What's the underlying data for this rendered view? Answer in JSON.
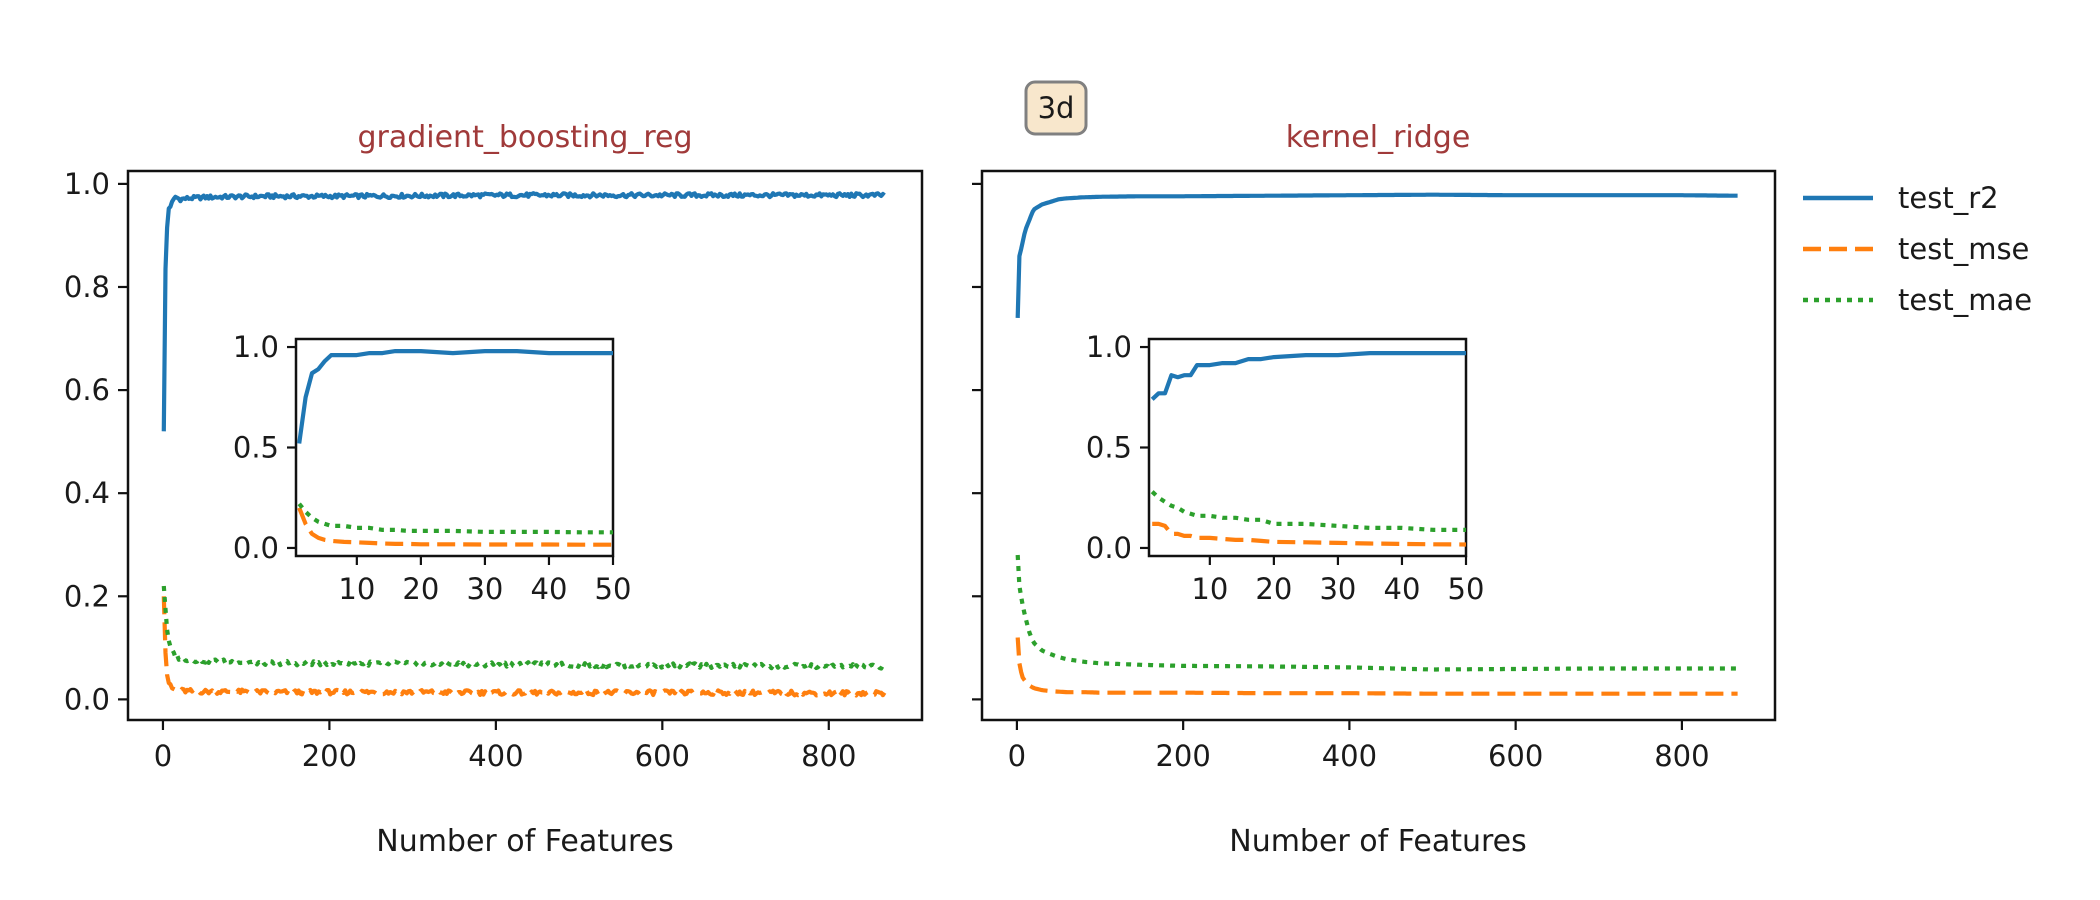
{
  "figure": {
    "badge": "3d",
    "xlabel": "Number of Features",
    "colors": {
      "test_r2": "#1f77b4",
      "test_mse": "#ff7f0e",
      "test_mae": "#2ca02c",
      "title": "#a03a3a",
      "badge_bg": "#f8e7cc",
      "badge_border": "#808080"
    }
  },
  "legend": [
    {
      "name": "test_r2",
      "style": "solid"
    },
    {
      "name": "test_mse",
      "style": "dashed"
    },
    {
      "name": "test_mae",
      "style": "dotted"
    }
  ],
  "chart_data": [
    {
      "type": "line",
      "title": "gradient_boosting_reg",
      "xlabel": "Number of Features",
      "ylabel": "",
      "xlim": [
        -42,
        912
      ],
      "ylim": [
        -0.04,
        1.025
      ],
      "xticks": [
        0,
        200,
        400,
        600,
        800
      ],
      "yticks": [
        0.0,
        0.2,
        0.4,
        0.6,
        0.8,
        1.0
      ],
      "ytick_labels": [
        "0.0",
        "0.2",
        "0.4",
        "0.6",
        "0.8",
        "1.0"
      ],
      "noisy": true,
      "series": [
        {
          "name": "test_r2",
          "x": [
            1,
            2,
            4,
            6,
            10,
            15,
            20,
            30,
            50,
            80,
            120,
            200,
            300,
            400,
            500,
            600,
            700,
            800,
            868
          ],
          "values": [
            0.52,
            0.79,
            0.88,
            0.95,
            0.96,
            0.975,
            0.97,
            0.972,
            0.974,
            0.975,
            0.976,
            0.976,
            0.977,
            0.978,
            0.978,
            0.978,
            0.978,
            0.978,
            0.978
          ]
        },
        {
          "name": "test_mse",
          "x": [
            1,
            2,
            4,
            6,
            10,
            15,
            20,
            30,
            50,
            80,
            120,
            200,
            300,
            400,
            500,
            600,
            700,
            800,
            868
          ],
          "values": [
            0.2,
            0.12,
            0.06,
            0.035,
            0.022,
            0.018,
            0.017,
            0.016,
            0.015,
            0.015,
            0.014,
            0.014,
            0.014,
            0.013,
            0.013,
            0.013,
            0.013,
            0.012,
            0.012
          ]
        },
        {
          "name": "test_mae",
          "x": [
            1,
            2,
            4,
            6,
            10,
            15,
            20,
            30,
            50,
            80,
            120,
            200,
            300,
            400,
            500,
            600,
            700,
            800,
            868
          ],
          "values": [
            0.22,
            0.2,
            0.15,
            0.12,
            0.095,
            0.085,
            0.08,
            0.078,
            0.075,
            0.073,
            0.071,
            0.07,
            0.069,
            0.068,
            0.067,
            0.066,
            0.065,
            0.064,
            0.064
          ]
        }
      ],
      "inset": {
        "xlim": [
          0.5,
          50
        ],
        "ylim": [
          -0.04,
          1.04
        ],
        "xticks": [
          10,
          20,
          30,
          40,
          50
        ],
        "yticks": [
          0.0,
          0.5,
          1.0
        ],
        "ytick_labels": [
          "0.0",
          "0.5",
          "1.0"
        ],
        "series": [
          {
            "name": "test_r2",
            "x": [
              1,
              2,
              3,
              4,
              5,
              6,
              8,
              10,
              12,
              14,
              16,
              18,
              20,
              25,
              30,
              35,
              40,
              45,
              50
            ],
            "values": [
              0.52,
              0.75,
              0.87,
              0.89,
              0.93,
              0.96,
              0.96,
              0.96,
              0.97,
              0.97,
              0.98,
              0.98,
              0.98,
              0.97,
              0.98,
              0.98,
              0.97,
              0.97,
              0.97
            ]
          },
          {
            "name": "test_mse",
            "x": [
              1,
              2,
              3,
              4,
              5,
              6,
              8,
              10,
              12,
              14,
              16,
              18,
              20,
              25,
              30,
              35,
              40,
              45,
              50
            ],
            "values": [
              0.2,
              0.12,
              0.07,
              0.05,
              0.04,
              0.035,
              0.03,
              0.028,
              0.025,
              0.022,
              0.02,
              0.02,
              0.018,
              0.018,
              0.017,
              0.017,
              0.017,
              0.016,
              0.016
            ]
          },
          {
            "name": "test_mae",
            "x": [
              1,
              2,
              3,
              4,
              5,
              6,
              8,
              10,
              12,
              14,
              16,
              18,
              20,
              25,
              30,
              35,
              40,
              45,
              50
            ],
            "values": [
              0.22,
              0.18,
              0.15,
              0.13,
              0.12,
              0.11,
              0.11,
              0.1,
              0.1,
              0.09,
              0.09,
              0.085,
              0.085,
              0.085,
              0.08,
              0.08,
              0.08,
              0.078,
              0.078
            ]
          }
        ]
      }
    },
    {
      "type": "line",
      "title": "kernel_ridge",
      "xlabel": "Number of Features",
      "ylabel": "",
      "xlim": [
        -42,
        912
      ],
      "ylim": [
        -0.04,
        1.025
      ],
      "xticks": [
        0,
        200,
        400,
        600,
        800
      ],
      "yticks": [
        0.0,
        0.2,
        0.4,
        0.6,
        0.8,
        1.0
      ],
      "ytick_labels": [
        "",
        "",
        "",
        "",
        "",
        ""
      ],
      "noisy": false,
      "series": [
        {
          "name": "test_r2",
          "x": [
            1,
            3,
            6,
            10,
            15,
            20,
            30,
            40,
            50,
            60,
            80,
            100,
            150,
            200,
            300,
            400,
            500,
            600,
            700,
            800,
            868
          ],
          "values": [
            0.74,
            0.86,
            0.88,
            0.91,
            0.93,
            0.95,
            0.96,
            0.965,
            0.97,
            0.972,
            0.974,
            0.975,
            0.976,
            0.976,
            0.977,
            0.978,
            0.979,
            0.978,
            0.978,
            0.978,
            0.977
          ]
        },
        {
          "name": "test_mse",
          "x": [
            1,
            3,
            6,
            10,
            15,
            20,
            30,
            40,
            50,
            60,
            80,
            100,
            150,
            200,
            300,
            400,
            500,
            600,
            700,
            800,
            868
          ],
          "values": [
            0.12,
            0.07,
            0.045,
            0.035,
            0.027,
            0.022,
            0.018,
            0.016,
            0.015,
            0.014,
            0.014,
            0.013,
            0.013,
            0.013,
            0.012,
            0.012,
            0.011,
            0.011,
            0.011,
            0.011,
            0.011
          ]
        },
        {
          "name": "test_mae",
          "x": [
            1,
            3,
            6,
            10,
            15,
            20,
            30,
            40,
            50,
            60,
            80,
            100,
            150,
            200,
            300,
            400,
            500,
            600,
            700,
            800,
            868
          ],
          "values": [
            0.28,
            0.22,
            0.19,
            0.16,
            0.13,
            0.11,
            0.095,
            0.088,
            0.082,
            0.078,
            0.073,
            0.07,
            0.067,
            0.065,
            0.064,
            0.062,
            0.058,
            0.059,
            0.06,
            0.06,
            0.06
          ]
        }
      ],
      "inset": {
        "xlim": [
          0.5,
          50
        ],
        "ylim": [
          -0.04,
          1.04
        ],
        "xticks": [
          10,
          20,
          30,
          40,
          50
        ],
        "yticks": [
          0.0,
          0.5,
          1.0
        ],
        "ytick_labels": [
          "0.0",
          "0.5",
          "1.0"
        ],
        "series": [
          {
            "name": "test_r2",
            "x": [
              1,
              2,
              3,
              4,
              5,
              6,
              7,
              8,
              10,
              12,
              14,
              16,
              18,
              20,
              25,
              30,
              35,
              40,
              45,
              50
            ],
            "values": [
              0.74,
              0.77,
              0.77,
              0.86,
              0.85,
              0.86,
              0.86,
              0.91,
              0.91,
              0.92,
              0.92,
              0.94,
              0.94,
              0.95,
              0.96,
              0.96,
              0.97,
              0.97,
              0.97,
              0.97
            ]
          },
          {
            "name": "test_mse",
            "x": [
              1,
              2,
              3,
              4,
              5,
              6,
              7,
              8,
              10,
              12,
              14,
              16,
              18,
              20,
              25,
              30,
              35,
              40,
              45,
              50
            ],
            "values": [
              0.12,
              0.12,
              0.11,
              0.07,
              0.07,
              0.06,
              0.06,
              0.05,
              0.05,
              0.045,
              0.04,
              0.04,
              0.035,
              0.03,
              0.028,
              0.025,
              0.022,
              0.02,
              0.018,
              0.017
            ]
          },
          {
            "name": "test_mae",
            "x": [
              1,
              2,
              3,
              4,
              5,
              6,
              7,
              8,
              10,
              12,
              14,
              16,
              18,
              20,
              25,
              30,
              35,
              40,
              45,
              50
            ],
            "values": [
              0.28,
              0.25,
              0.23,
              0.21,
              0.2,
              0.18,
              0.17,
              0.16,
              0.16,
              0.15,
              0.15,
              0.14,
              0.14,
              0.12,
              0.12,
              0.11,
              0.1,
              0.1,
              0.09,
              0.09
            ]
          }
        ]
      }
    }
  ]
}
